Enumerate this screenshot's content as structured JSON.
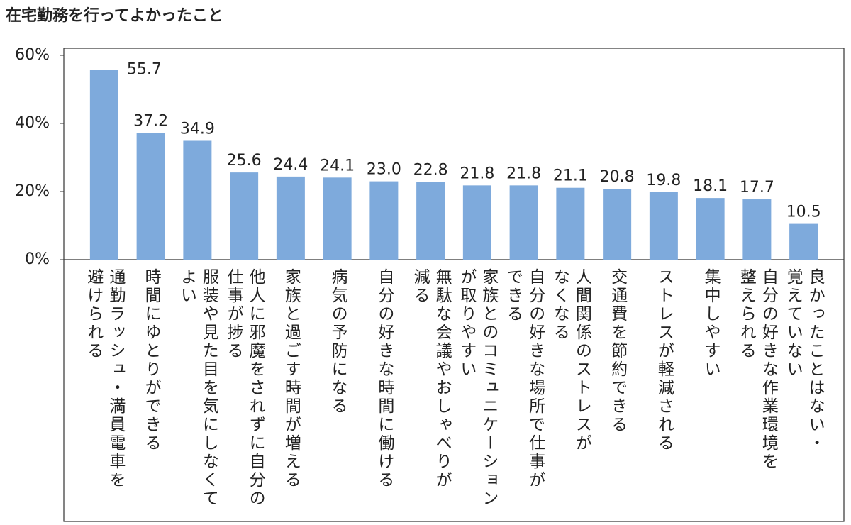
{
  "chart_data": {
    "type": "bar",
    "title": "在宅勤務を行ってよかったこと",
    "categories": [
      "通勤ラッシュ・満員電車を\n避けられる",
      "時間にゆとりができる",
      "服装や見た目を気にしなくて\nよい",
      "他人に邪魔をされずに自分の\n仕事が捗る",
      "家族と過ごす時間が増える",
      "病気の予防になる",
      "自分の好きな時間に働ける",
      "無駄な会議やおしゃべりが\n減る",
      "家族とのコミュニケーション\nが取りやすい",
      "自分の好きな場所で仕事が\nできる",
      "人間関係のストレスが\nなくなる",
      "交通費を節約できる",
      "ストレスが軽減される",
      "集中しやすい",
      "自分の好きな作業環境を\n整えられる",
      "良かったことはない・\n覚えていない"
    ],
    "values": [
      55.7,
      37.2,
      34.9,
      25.6,
      24.4,
      24.1,
      23.0,
      22.8,
      21.8,
      21.8,
      21.1,
      20.8,
      19.8,
      18.1,
      17.7,
      10.5
    ],
    "value_labels": [
      "55.7",
      "37.2",
      "34.9",
      "25.6",
      "24.4",
      "24.1",
      "23.0",
      "22.8",
      "21.8",
      "21.8",
      "21.1",
      "20.8",
      "19.8",
      "18.1",
      "17.7",
      "10.5"
    ],
    "color": "#7eaadc",
    "ylim": [
      0,
      60
    ],
    "yticks": [
      {
        "value": 0,
        "label": "0%"
      },
      {
        "value": 20,
        "label": "20%"
      },
      {
        "value": 40,
        "label": "40%"
      },
      {
        "value": 60,
        "label": "60%"
      }
    ],
    "grid": false
  }
}
